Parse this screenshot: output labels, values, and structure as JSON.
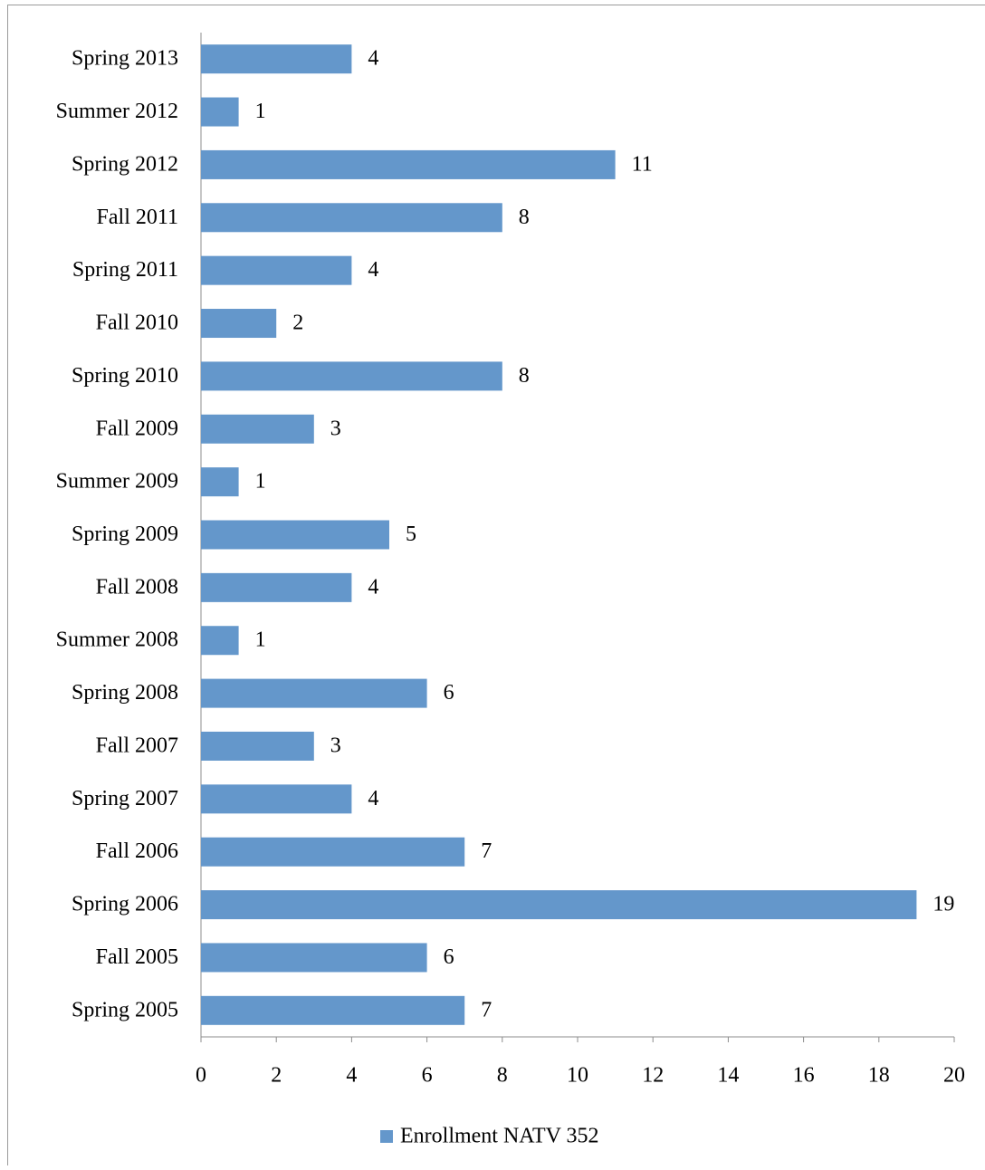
{
  "chart_data": {
    "type": "barh",
    "categories": [
      "Spring 2005",
      "Fall 2005",
      "Spring 2006",
      "Fall 2006",
      "Spring 2007",
      "Fall 2007",
      "Spring 2008",
      "Summer 2008",
      "Fall 2008",
      "Spring 2009",
      "Summer 2009",
      "Fall 2009",
      "Spring 2010",
      "Fall 2010",
      "Spring 2011",
      "Fall 2011",
      "Spring 2012",
      "Summer 2012",
      "Spring 2013"
    ],
    "series": [
      {
        "name": "Enrollment NATV 352",
        "color": "#6497cb",
        "values": [
          7,
          6,
          19,
          7,
          4,
          3,
          6,
          1,
          4,
          5,
          1,
          3,
          8,
          2,
          4,
          8,
          11,
          1,
          4
        ]
      }
    ],
    "xlim": [
      0,
      20
    ],
    "xticks": [
      0,
      2,
      4,
      6,
      8,
      10,
      12,
      14,
      16,
      18,
      20
    ],
    "grid": false,
    "legend": "bottom"
  }
}
